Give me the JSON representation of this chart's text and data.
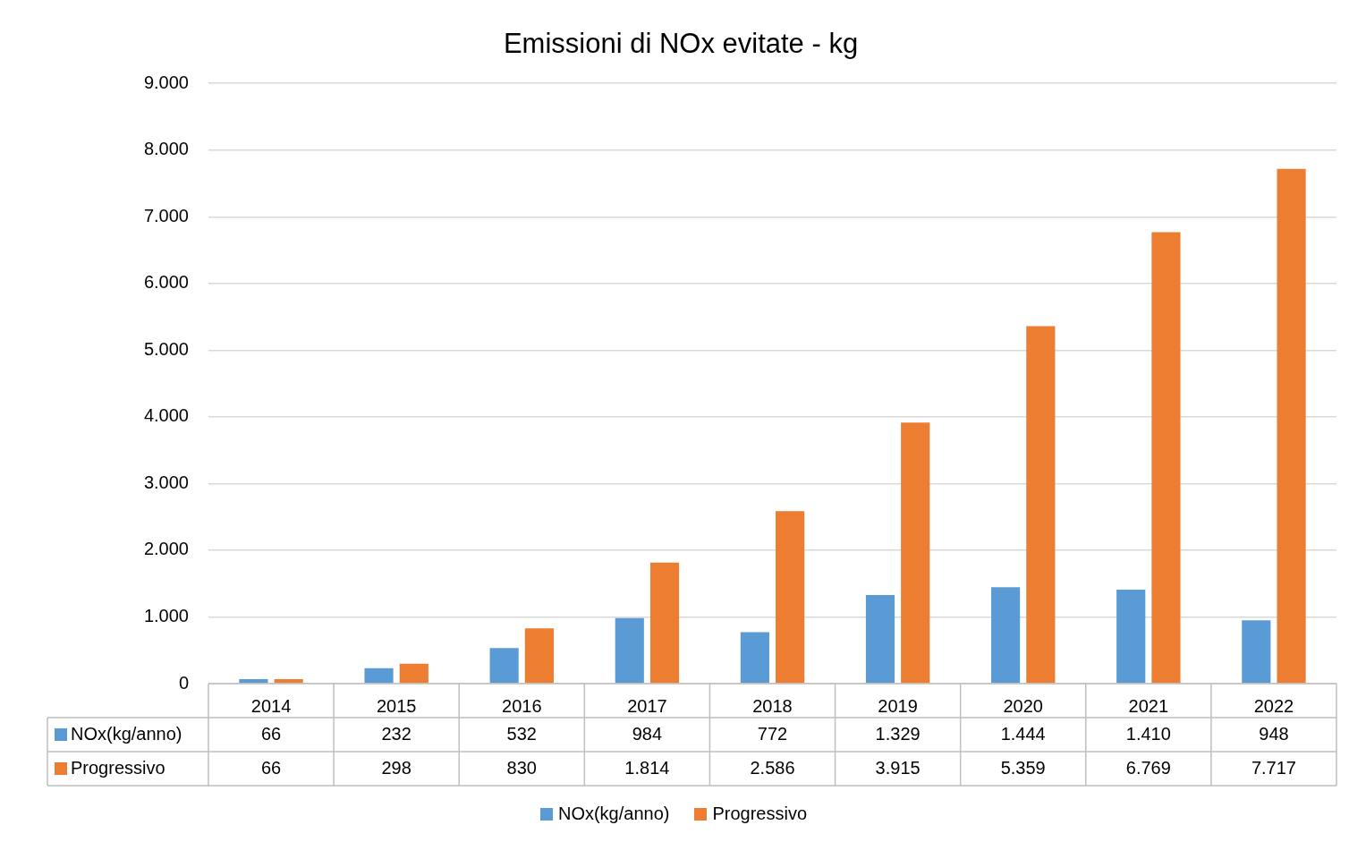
{
  "chart_data": {
    "type": "bar",
    "title": "Emissioni di NOx evitate - kg",
    "categories": [
      "2014",
      "2015",
      "2016",
      "2017",
      "2018",
      "2019",
      "2020",
      "2021",
      "2022"
    ],
    "series": [
      {
        "name": "NOx(kg/anno)",
        "color": "#5b9bd5",
        "values": [
          66,
          232,
          532,
          984,
          772,
          1329,
          1444,
          1410,
          948
        ],
        "value_labels": [
          "66",
          "232",
          "532",
          "984",
          "772",
          "1.329",
          "1.444",
          "1.410",
          "948"
        ]
      },
      {
        "name": "Progressivo",
        "color": "#ed7d31",
        "values": [
          66,
          298,
          830,
          1814,
          2586,
          3915,
          5359,
          6769,
          7717
        ],
        "value_labels": [
          "66",
          "298",
          "830",
          "1.814",
          "2.586",
          "3.915",
          "5.359",
          "6.769",
          "7.717"
        ]
      }
    ],
    "ylim": [
      0,
      9000
    ],
    "yticks": [
      {
        "value": 0,
        "label": "0"
      },
      {
        "value": 1000,
        "label": "1.000"
      },
      {
        "value": 2000,
        "label": "2.000"
      },
      {
        "value": 3000,
        "label": "3.000"
      },
      {
        "value": 4000,
        "label": "4.000"
      },
      {
        "value": 5000,
        "label": "5.000"
      },
      {
        "value": 6000,
        "label": "6.000"
      },
      {
        "value": 7000,
        "label": "7.000"
      },
      {
        "value": 8000,
        "label": "8.000"
      },
      {
        "value": 9000,
        "label": "9.000"
      }
    ],
    "grid": "y",
    "legend": "bottom"
  }
}
